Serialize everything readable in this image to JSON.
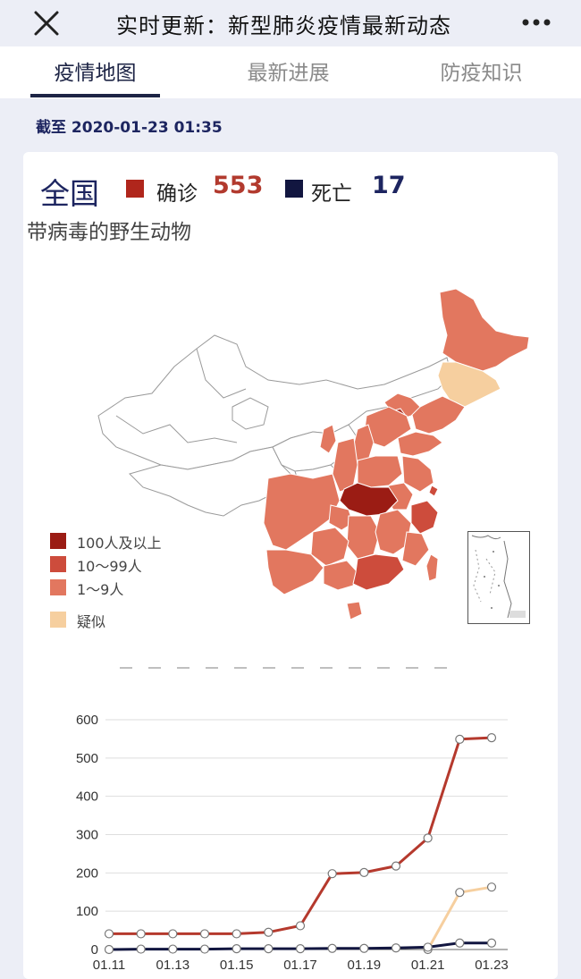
{
  "topbar": {
    "title": "实时更新：新型肺炎疫情最新动态",
    "close_icon": "close-icon",
    "more_icon": "more-icon"
  },
  "tabs": [
    {
      "label": "疫情地图",
      "active": true
    },
    {
      "label": "最新进展",
      "active": false
    },
    {
      "label": "防疫知识",
      "active": false
    }
  ],
  "as_of": "截至 2020-01-23 01:35",
  "summary": {
    "region": "全国",
    "confirmed_label": "确诊",
    "confirmed_value": "553",
    "confirmed_color": "#b0261c",
    "death_label": "死亡",
    "death_value": "17",
    "death_color": "#121640"
  },
  "ticker": "带病毒的野生动物",
  "map_legend": [
    {
      "label": "100人及以上",
      "color": "#9b1c14"
    },
    {
      "label": "10〜99人",
      "color": "#cd4c3c"
    },
    {
      "label": "1〜9人",
      "color": "#e2775f"
    },
    {
      "label": "疑似",
      "color": "#f6cf9f"
    }
  ],
  "chart_data": {
    "type": "line",
    "x": [
      "01.11",
      "01.12",
      "01.13",
      "01.14",
      "01.15",
      "01.16",
      "01.17",
      "01.18",
      "01.19",
      "01.20",
      "01.21",
      "01.22",
      "01.23"
    ],
    "x_tick_labels": [
      "01.11",
      "01.13",
      "01.15",
      "01.17",
      "01.19",
      "01.21",
      "01.23"
    ],
    "ylim": [
      0,
      600
    ],
    "y_ticks": [
      0,
      100,
      200,
      300,
      400,
      500,
      600
    ],
    "grid": true,
    "series": [
      {
        "color": "#b5392d",
        "values": [
          41,
          41,
          41,
          41,
          41,
          45,
          62,
          198,
          201,
          218,
          291,
          549,
          553
        ]
      },
      {
        "color": "#f6cf9f",
        "values": [
          null,
          null,
          null,
          null,
          null,
          null,
          null,
          null,
          null,
          null,
          0,
          149,
          163
        ]
      },
      {
        "color": "#121640",
        "values": [
          0,
          1,
          1,
          1,
          2,
          2,
          2,
          3,
          3,
          4,
          6,
          17,
          17
        ]
      }
    ]
  }
}
